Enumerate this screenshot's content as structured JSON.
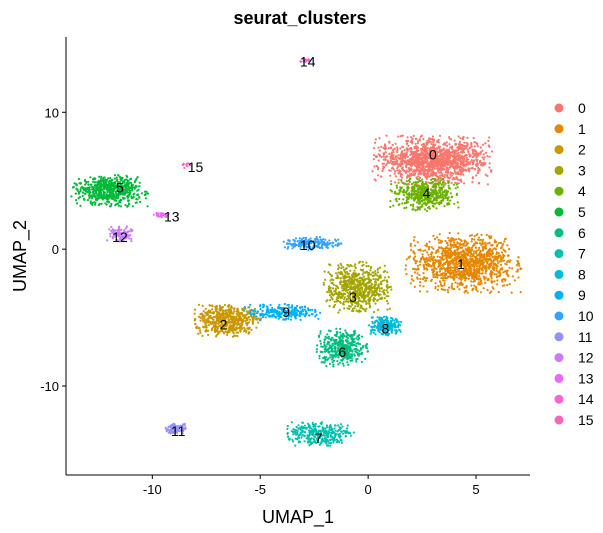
{
  "chart_data": {
    "type": "scatter",
    "title": "seurat_clusters",
    "xlabel": "UMAP_1",
    "ylabel": "UMAP_2",
    "xlim": [
      -14,
      7.5
    ],
    "ylim": [
      -16.5,
      15.5
    ],
    "x_ticks": [
      -10,
      -5,
      0,
      5
    ],
    "y_ticks": [
      -10,
      0,
      10
    ],
    "x_tick_labels": [
      "-10",
      "-5",
      "0",
      "5"
    ],
    "y_tick_labels": [
      "-10",
      "0",
      "10"
    ],
    "grid": false,
    "legend_position": "right",
    "clusters": [
      {
        "name": "0",
        "color": "#F8766D",
        "center": [
          3.0,
          6.5
        ],
        "spread": [
          2.8,
          1.8
        ],
        "n": 1400,
        "label_pos": [
          3.0,
          6.9
        ]
      },
      {
        "name": "1",
        "color": "#E58700",
        "center": [
          4.4,
          -1.0
        ],
        "spread": [
          2.7,
          2.2
        ],
        "n": 1200,
        "label_pos": [
          4.3,
          -1.1
        ]
      },
      {
        "name": "2",
        "color": "#C99800",
        "center": [
          -6.5,
          -5.2
        ],
        "spread": [
          1.6,
          1.2
        ],
        "n": 550,
        "label_pos": [
          -6.7,
          -5.5
        ]
      },
      {
        "name": "3",
        "color": "#A3A500",
        "center": [
          -0.5,
          -2.8
        ],
        "spread": [
          1.6,
          1.9
        ],
        "n": 650,
        "label_pos": [
          -0.7,
          -3.5
        ]
      },
      {
        "name": "4",
        "color": "#6BB100",
        "center": [
          2.6,
          4.0
        ],
        "spread": [
          1.6,
          1.2
        ],
        "n": 450,
        "label_pos": [
          2.7,
          4.1
        ]
      },
      {
        "name": "5",
        "color": "#00BA38",
        "center": [
          -12.0,
          4.3
        ],
        "spread": [
          1.8,
          1.2
        ],
        "n": 600,
        "label_pos": [
          -11.5,
          4.5
        ]
      },
      {
        "name": "6",
        "color": "#00BF7D",
        "center": [
          -1.2,
          -7.2
        ],
        "spread": [
          1.2,
          1.4
        ],
        "n": 420,
        "label_pos": [
          -1.2,
          -7.5
        ]
      },
      {
        "name": "7",
        "color": "#00C0AF",
        "center": [
          -2.2,
          -13.5
        ],
        "spread": [
          1.6,
          0.9
        ],
        "n": 320,
        "label_pos": [
          -2.3,
          -13.8
        ]
      },
      {
        "name": "8",
        "color": "#00BCD8",
        "center": [
          0.8,
          -5.6
        ],
        "spread": [
          0.8,
          0.7
        ],
        "n": 230,
        "label_pos": [
          0.8,
          -5.8
        ]
      },
      {
        "name": "9",
        "color": "#00B0F6",
        "center": [
          -4.0,
          -4.6
        ],
        "spread": [
          1.8,
          0.6
        ],
        "n": 230,
        "label_pos": [
          -3.8,
          -4.6
        ]
      },
      {
        "name": "10",
        "color": "#35A2FF",
        "center": [
          -2.6,
          0.4
        ],
        "spread": [
          1.4,
          0.5
        ],
        "n": 180,
        "label_pos": [
          -2.8,
          0.3
        ]
      },
      {
        "name": "11",
        "color": "#9590FF",
        "center": [
          -8.9,
          -13.1
        ],
        "spread": [
          0.5,
          0.4
        ],
        "n": 110,
        "label_pos": [
          -8.8,
          -13.3
        ]
      },
      {
        "name": "12",
        "color": "#C77CFF",
        "center": [
          -11.5,
          1.1
        ],
        "spread": [
          0.6,
          0.6
        ],
        "n": 100,
        "label_pos": [
          -11.5,
          0.9
        ]
      },
      {
        "name": "13",
        "color": "#E76BF3",
        "center": [
          -9.5,
          2.5
        ],
        "spread": [
          0.5,
          0.2
        ],
        "n": 35,
        "label_pos": [
          -9.1,
          2.4
        ]
      },
      {
        "name": "14",
        "color": "#FA62DB",
        "center": [
          -2.9,
          13.8
        ],
        "spread": [
          0.3,
          0.2
        ],
        "n": 15,
        "label_pos": [
          -2.8,
          13.7
        ]
      },
      {
        "name": "15",
        "color": "#FF62BC",
        "center": [
          -8.4,
          6.1
        ],
        "spread": [
          0.2,
          0.2
        ],
        "n": 12,
        "label_pos": [
          -8.0,
          6.0
        ]
      }
    ]
  }
}
